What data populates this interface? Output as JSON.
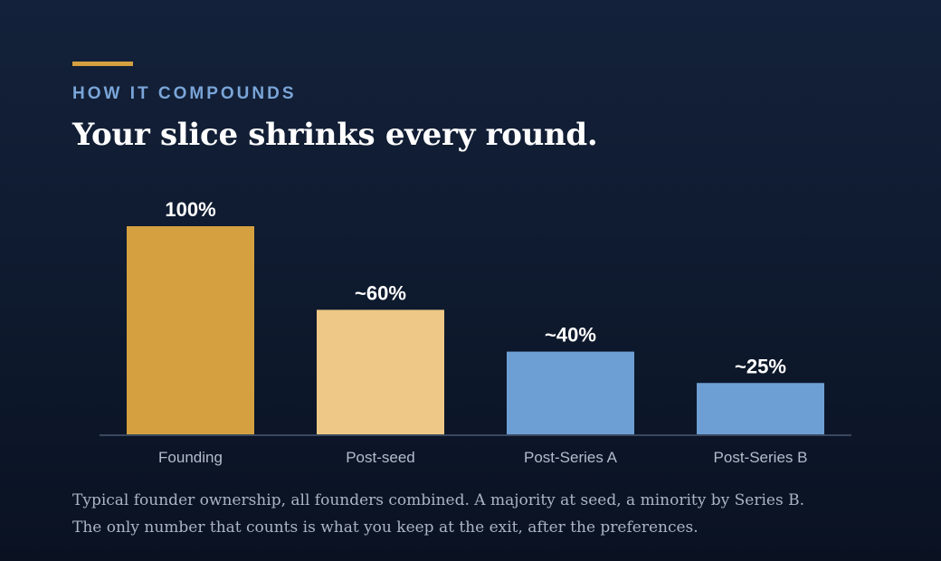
{
  "header": {
    "eyebrow": "HOW IT COMPOUNDS",
    "title": "Your slice shrinks every round."
  },
  "chart_data": {
    "type": "bar",
    "categories": [
      "Founding",
      "Post-seed",
      "Post-Series A",
      "Post-Series B"
    ],
    "values": [
      100,
      60,
      40,
      25
    ],
    "value_labels": [
      "100%",
      "~60%",
      "~40%",
      "~25%"
    ],
    "colors": [
      "#d4a040",
      "#edc886",
      "#6d9fd5",
      "#6d9fd5"
    ],
    "ylim": [
      0,
      100
    ],
    "grid": false,
    "title": "",
    "xlabel": "",
    "ylabel": ""
  },
  "caption": {
    "line1": "Typical founder ownership, all founders combined. A majority at seed, a minority by Series B.",
    "line2": "The only number that counts is what you keep at the exit, after the preferences."
  },
  "theme": {
    "accent": "#d4a040",
    "eyebrow_color": "#7aa5d8",
    "axis_color": "#3a4860"
  }
}
